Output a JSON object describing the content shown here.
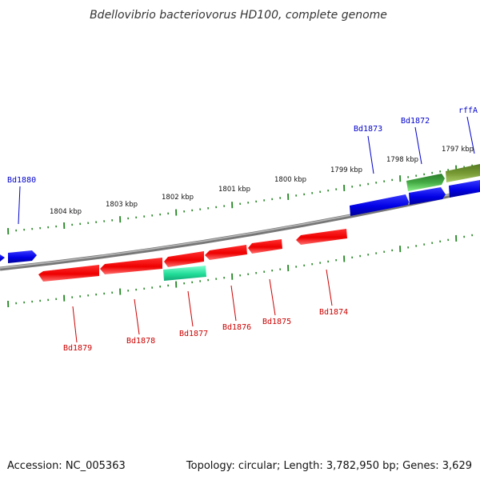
{
  "title": "Bdellovibrio bacteriovorus HD100, complete genome",
  "footer": {
    "accession": "Accession: NC_005363",
    "summary": "Topology: circular; Length: 3,782,950 bp; Genes: 3,629"
  },
  "colors": {
    "forward_gene": "#0000ee",
    "reverse_gene": "#ee0000",
    "rna_gene": "#33cc99",
    "feature_green": "#339933",
    "feature_olive": "#669933",
    "tick": "#228822",
    "backbone": "#888888",
    "label_forward": "#0000cc",
    "label_reverse": "#cc0000"
  },
  "kbp_labels": [
    "1804 kbp",
    "1803 kbp",
    "1802 kbp",
    "1801 kbp",
    "1800 kbp",
    "1799 kbp",
    "1798 kbp",
    "1797 kbp"
  ],
  "gene_labels_forward": [
    "Bd1880",
    "Bd1873",
    "Bd1872",
    "rffA"
  ],
  "gene_labels_reverse": [
    "Bd1879",
    "Bd1878",
    "Bd1877",
    "Bd1876",
    "Bd1875",
    "Bd1874"
  ]
}
